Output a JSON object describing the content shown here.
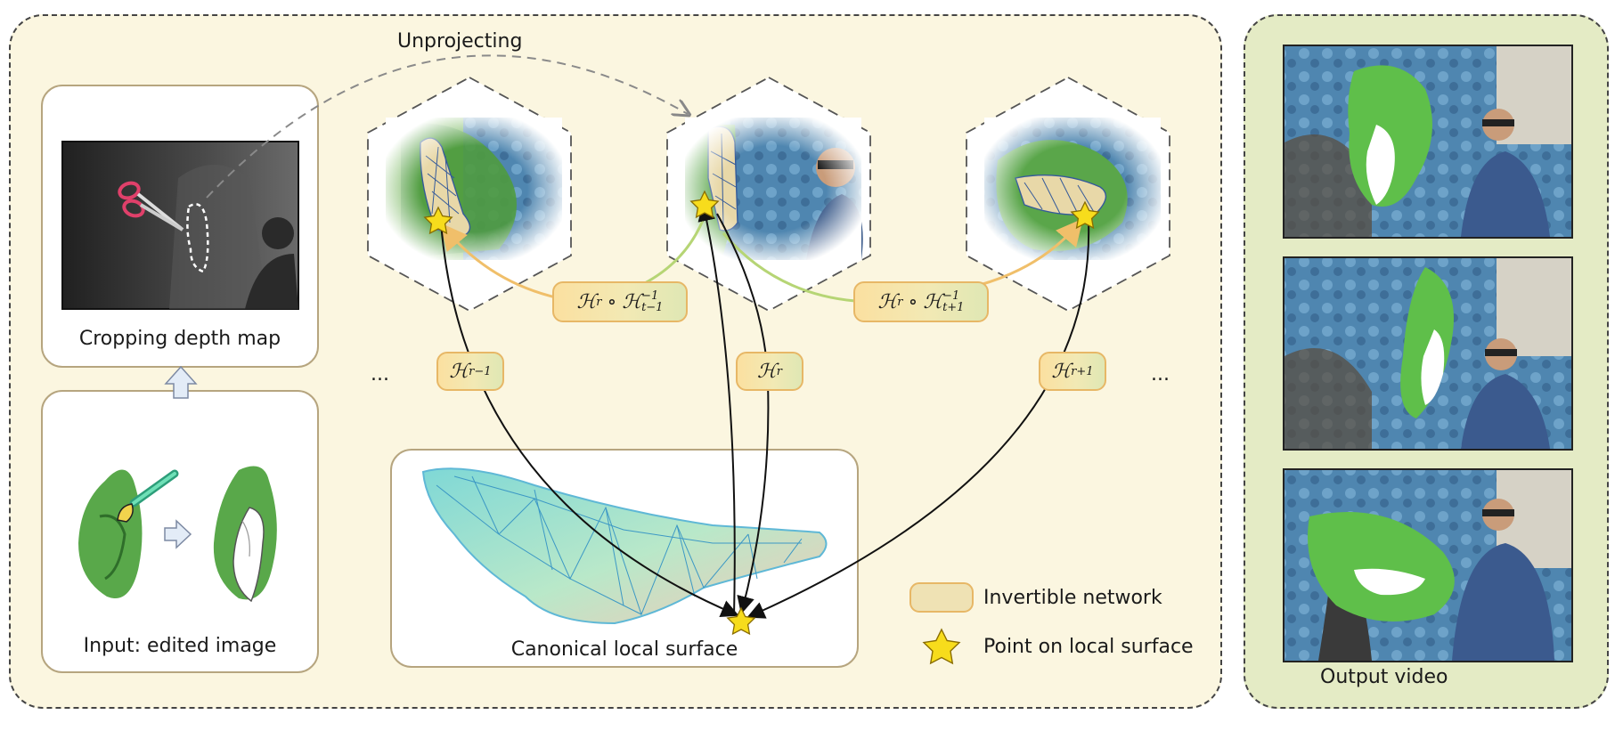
{
  "labels": {
    "unprojecting": "Unprojecting",
    "cropping_depth_map": "Cropping depth map",
    "input_edited_image": "Input: edited image",
    "canonical_local_surface": "Canonical local surface",
    "output_video": "Output video",
    "legend_invertible_network": "Invertible network",
    "legend_point_on_surface": "Point on local surface",
    "ellipsis": "..."
  },
  "math": {
    "H": "ℋ",
    "h_r_minus_1_sub": "r−1",
    "h_r_sub": "r",
    "h_r_plus_1_sub": "r+1",
    "compose_left_sub": "r",
    "compose_left_inv_sub": "t−1",
    "compose_right_inv_sub": "t+1",
    "inv_sup": "−1",
    "circ": "∘"
  },
  "colors": {
    "main_panel_bg": "#fbf6e0",
    "output_panel_bg": "#e4ebc5",
    "card_border": "#b6a57f",
    "star": "#f7dc1c",
    "arrow_orange": "#f0bf6a",
    "arrow_green": "#b6d575"
  }
}
